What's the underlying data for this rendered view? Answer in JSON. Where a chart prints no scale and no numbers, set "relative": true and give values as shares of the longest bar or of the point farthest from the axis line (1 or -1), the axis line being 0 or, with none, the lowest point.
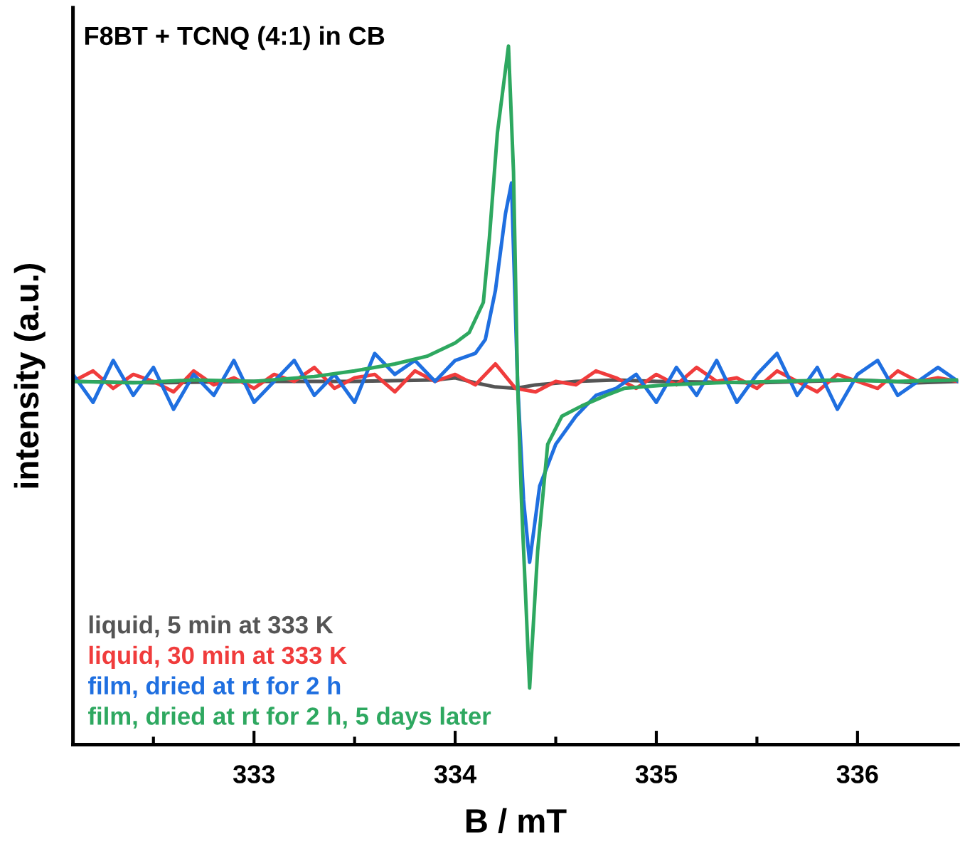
{
  "chart_data": {
    "type": "line",
    "title": "F8BT + TCNQ (4:1) in CB",
    "xlabel": "B / mT",
    "ylabel": "intensity (a.u.)",
    "relative": true,
    "xlim": [
      332.1,
      336.5
    ],
    "xticks": [
      {
        "value": 332.5,
        "label": null
      },
      333,
      {
        "value": 333.5,
        "label": null
      },
      334,
      {
        "value": 334.5,
        "label": null
      },
      335,
      {
        "value": 335.5,
        "label": null
      },
      336
    ],
    "grid": false,
    "legend": "bottom left",
    "marker": "none",
    "line_style": "solid",
    "series": [
      {
        "name": "liquid, 5 min at 333 K",
        "color": "#555555",
        "x": [
          332.1,
          332.5,
          333.0,
          333.5,
          333.9,
          334.0,
          334.1,
          334.2,
          334.3,
          334.4,
          334.6,
          334.8,
          335.0,
          335.5,
          336.0,
          336.3,
          336.5
        ],
        "values": [
          0.52,
          0.518,
          0.52,
          0.52,
          0.522,
          0.525,
          0.518,
          0.512,
          0.51,
          0.515,
          0.52,
          0.522,
          0.52,
          0.518,
          0.522,
          0.518,
          0.52
        ]
      },
      {
        "name": "liquid, 30 min at 333 K",
        "color": "#f03c3c",
        "x": [
          332.1,
          332.2,
          332.3,
          332.4,
          332.5,
          332.6,
          332.7,
          332.8,
          332.9,
          333.0,
          333.1,
          333.2,
          333.3,
          333.4,
          333.5,
          333.6,
          333.7,
          333.8,
          333.9,
          334.0,
          334.1,
          334.2,
          334.3,
          334.4,
          334.5,
          334.6,
          334.7,
          334.8,
          334.9,
          335.0,
          335.1,
          335.2,
          335.3,
          335.4,
          335.5,
          335.6,
          335.7,
          335.8,
          335.9,
          336.0,
          336.1,
          336.2,
          336.3,
          336.4,
          336.5
        ],
        "values": [
          0.52,
          0.535,
          0.51,
          0.53,
          0.52,
          0.505,
          0.535,
          0.515,
          0.525,
          0.51,
          0.53,
          0.52,
          0.54,
          0.51,
          0.525,
          0.53,
          0.505,
          0.535,
          0.52,
          0.53,
          0.515,
          0.545,
          0.51,
          0.505,
          0.52,
          0.515,
          0.535,
          0.525,
          0.51,
          0.53,
          0.515,
          0.54,
          0.52,
          0.525,
          0.51,
          0.535,
          0.52,
          0.505,
          0.53,
          0.52,
          0.51,
          0.535,
          0.52,
          0.525,
          0.52
        ]
      },
      {
        "name": "film, dried at rt for 2 h",
        "color": "#1f6fe0",
        "x": [
          332.1,
          332.2,
          332.3,
          332.4,
          332.5,
          332.6,
          332.7,
          332.8,
          332.9,
          333.0,
          333.1,
          333.2,
          333.3,
          333.4,
          333.5,
          333.6,
          333.7,
          333.8,
          333.9,
          334.0,
          334.1,
          334.15,
          334.2,
          334.25,
          334.28,
          334.31,
          334.34,
          334.37,
          334.42,
          334.5,
          334.6,
          334.7,
          334.8,
          334.9,
          335.0,
          335.1,
          335.2,
          335.3,
          335.4,
          335.5,
          335.6,
          335.7,
          335.8,
          335.9,
          336.0,
          336.1,
          336.2,
          336.3,
          336.4,
          336.5
        ],
        "values": [
          0.53,
          0.49,
          0.55,
          0.5,
          0.54,
          0.48,
          0.53,
          0.5,
          0.55,
          0.49,
          0.52,
          0.55,
          0.5,
          0.53,
          0.49,
          0.56,
          0.53,
          0.55,
          0.52,
          0.55,
          0.56,
          0.58,
          0.65,
          0.76,
          0.804,
          0.52,
          0.35,
          0.261,
          0.37,
          0.43,
          0.47,
          0.5,
          0.51,
          0.53,
          0.49,
          0.54,
          0.5,
          0.55,
          0.49,
          0.53,
          0.56,
          0.5,
          0.54,
          0.48,
          0.53,
          0.55,
          0.5,
          0.52,
          0.54,
          0.52
        ]
      },
      {
        "name": "film, dried at rt for 2 h, 5 days later",
        "color": "#2ea860",
        "x": [
          332.1,
          332.4,
          332.7,
          333.0,
          333.3,
          333.5,
          333.7,
          333.86,
          334.0,
          334.07,
          334.14,
          334.17,
          334.21,
          334.265,
          334.29,
          334.31,
          334.33,
          334.37,
          334.41,
          334.46,
          334.53,
          334.63,
          334.75,
          334.84,
          335.05,
          335.3,
          335.6,
          335.9,
          336.2,
          336.5
        ],
        "values": [
          0.52,
          0.518,
          0.522,
          0.52,
          0.527,
          0.535,
          0.545,
          0.556,
          0.575,
          0.59,
          0.633,
          0.725,
          0.876,
          1.0,
          0.82,
          0.52,
          0.346,
          0.081,
          0.277,
          0.43,
          0.47,
          0.485,
          0.5,
          0.51,
          0.515,
          0.518,
          0.52,
          0.522,
          0.52,
          0.522
        ]
      }
    ]
  }
}
